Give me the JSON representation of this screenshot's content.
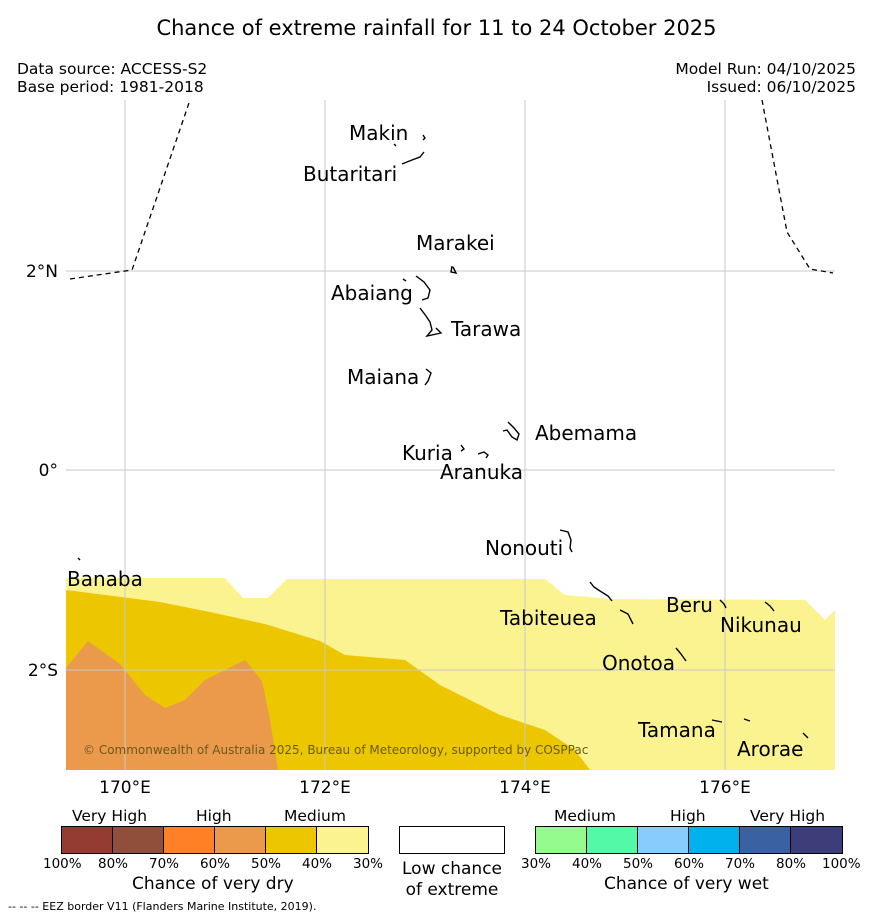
{
  "title": "Chance of extreme rainfall for 11 to 24 October 2025",
  "data_source": "Data source: ACCESS-S2",
  "base_period": "Base period: 1981-2018",
  "model_run": "Model Run: 04/10/2025",
  "issued": "Issued: 06/10/2025",
  "map": {
    "lat_labels": [
      "2°N",
      "0°",
      "2°S"
    ],
    "lon_labels": [
      "170°E",
      "172°E",
      "174°E",
      "176°E"
    ],
    "places": [
      "Makin",
      "Butaritari",
      "Marakei",
      "Abaiang",
      "Tarawa",
      "Maiana",
      "Abemama",
      "Kuria",
      "Aranuka",
      "Nonouti",
      "Banaba",
      "Tabiteuea",
      "Beru",
      "Nikunau",
      "Onotoa",
      "Tamana",
      "Arorae"
    ],
    "copyright": "© Commonwealth of Australia 2025, Bureau of Meteorology, supported by COSPPac"
  },
  "legend": {
    "dry": {
      "headers": [
        "Very High",
        "High",
        "Medium"
      ],
      "colors": [
        "#943c32",
        "#8f4f3a",
        "#ff8025",
        "#ea9a4a",
        "#ecc700",
        "#fbf38f"
      ],
      "ticks": [
        "100%",
        "80%",
        "70%",
        "60%",
        "50%",
        "40%",
        "30%"
      ],
      "caption": "Chance of very dry"
    },
    "low": {
      "line1": "Low chance",
      "line2": "of extreme"
    },
    "wet": {
      "headers": [
        "Medium",
        "High",
        "Very High"
      ],
      "colors": [
        "#95fb8f",
        "#53f9a7",
        "#88ccfe",
        "#00b1ee",
        "#3a62a3",
        "#3d3d7a"
      ],
      "ticks": [
        "30%",
        "40%",
        "50%",
        "60%",
        "70%",
        "80%",
        "100%"
      ],
      "caption": "Chance of very wet"
    }
  },
  "footer": "--  --  -- EEZ border V11 (Flanders Marine Institute, 2019)."
}
